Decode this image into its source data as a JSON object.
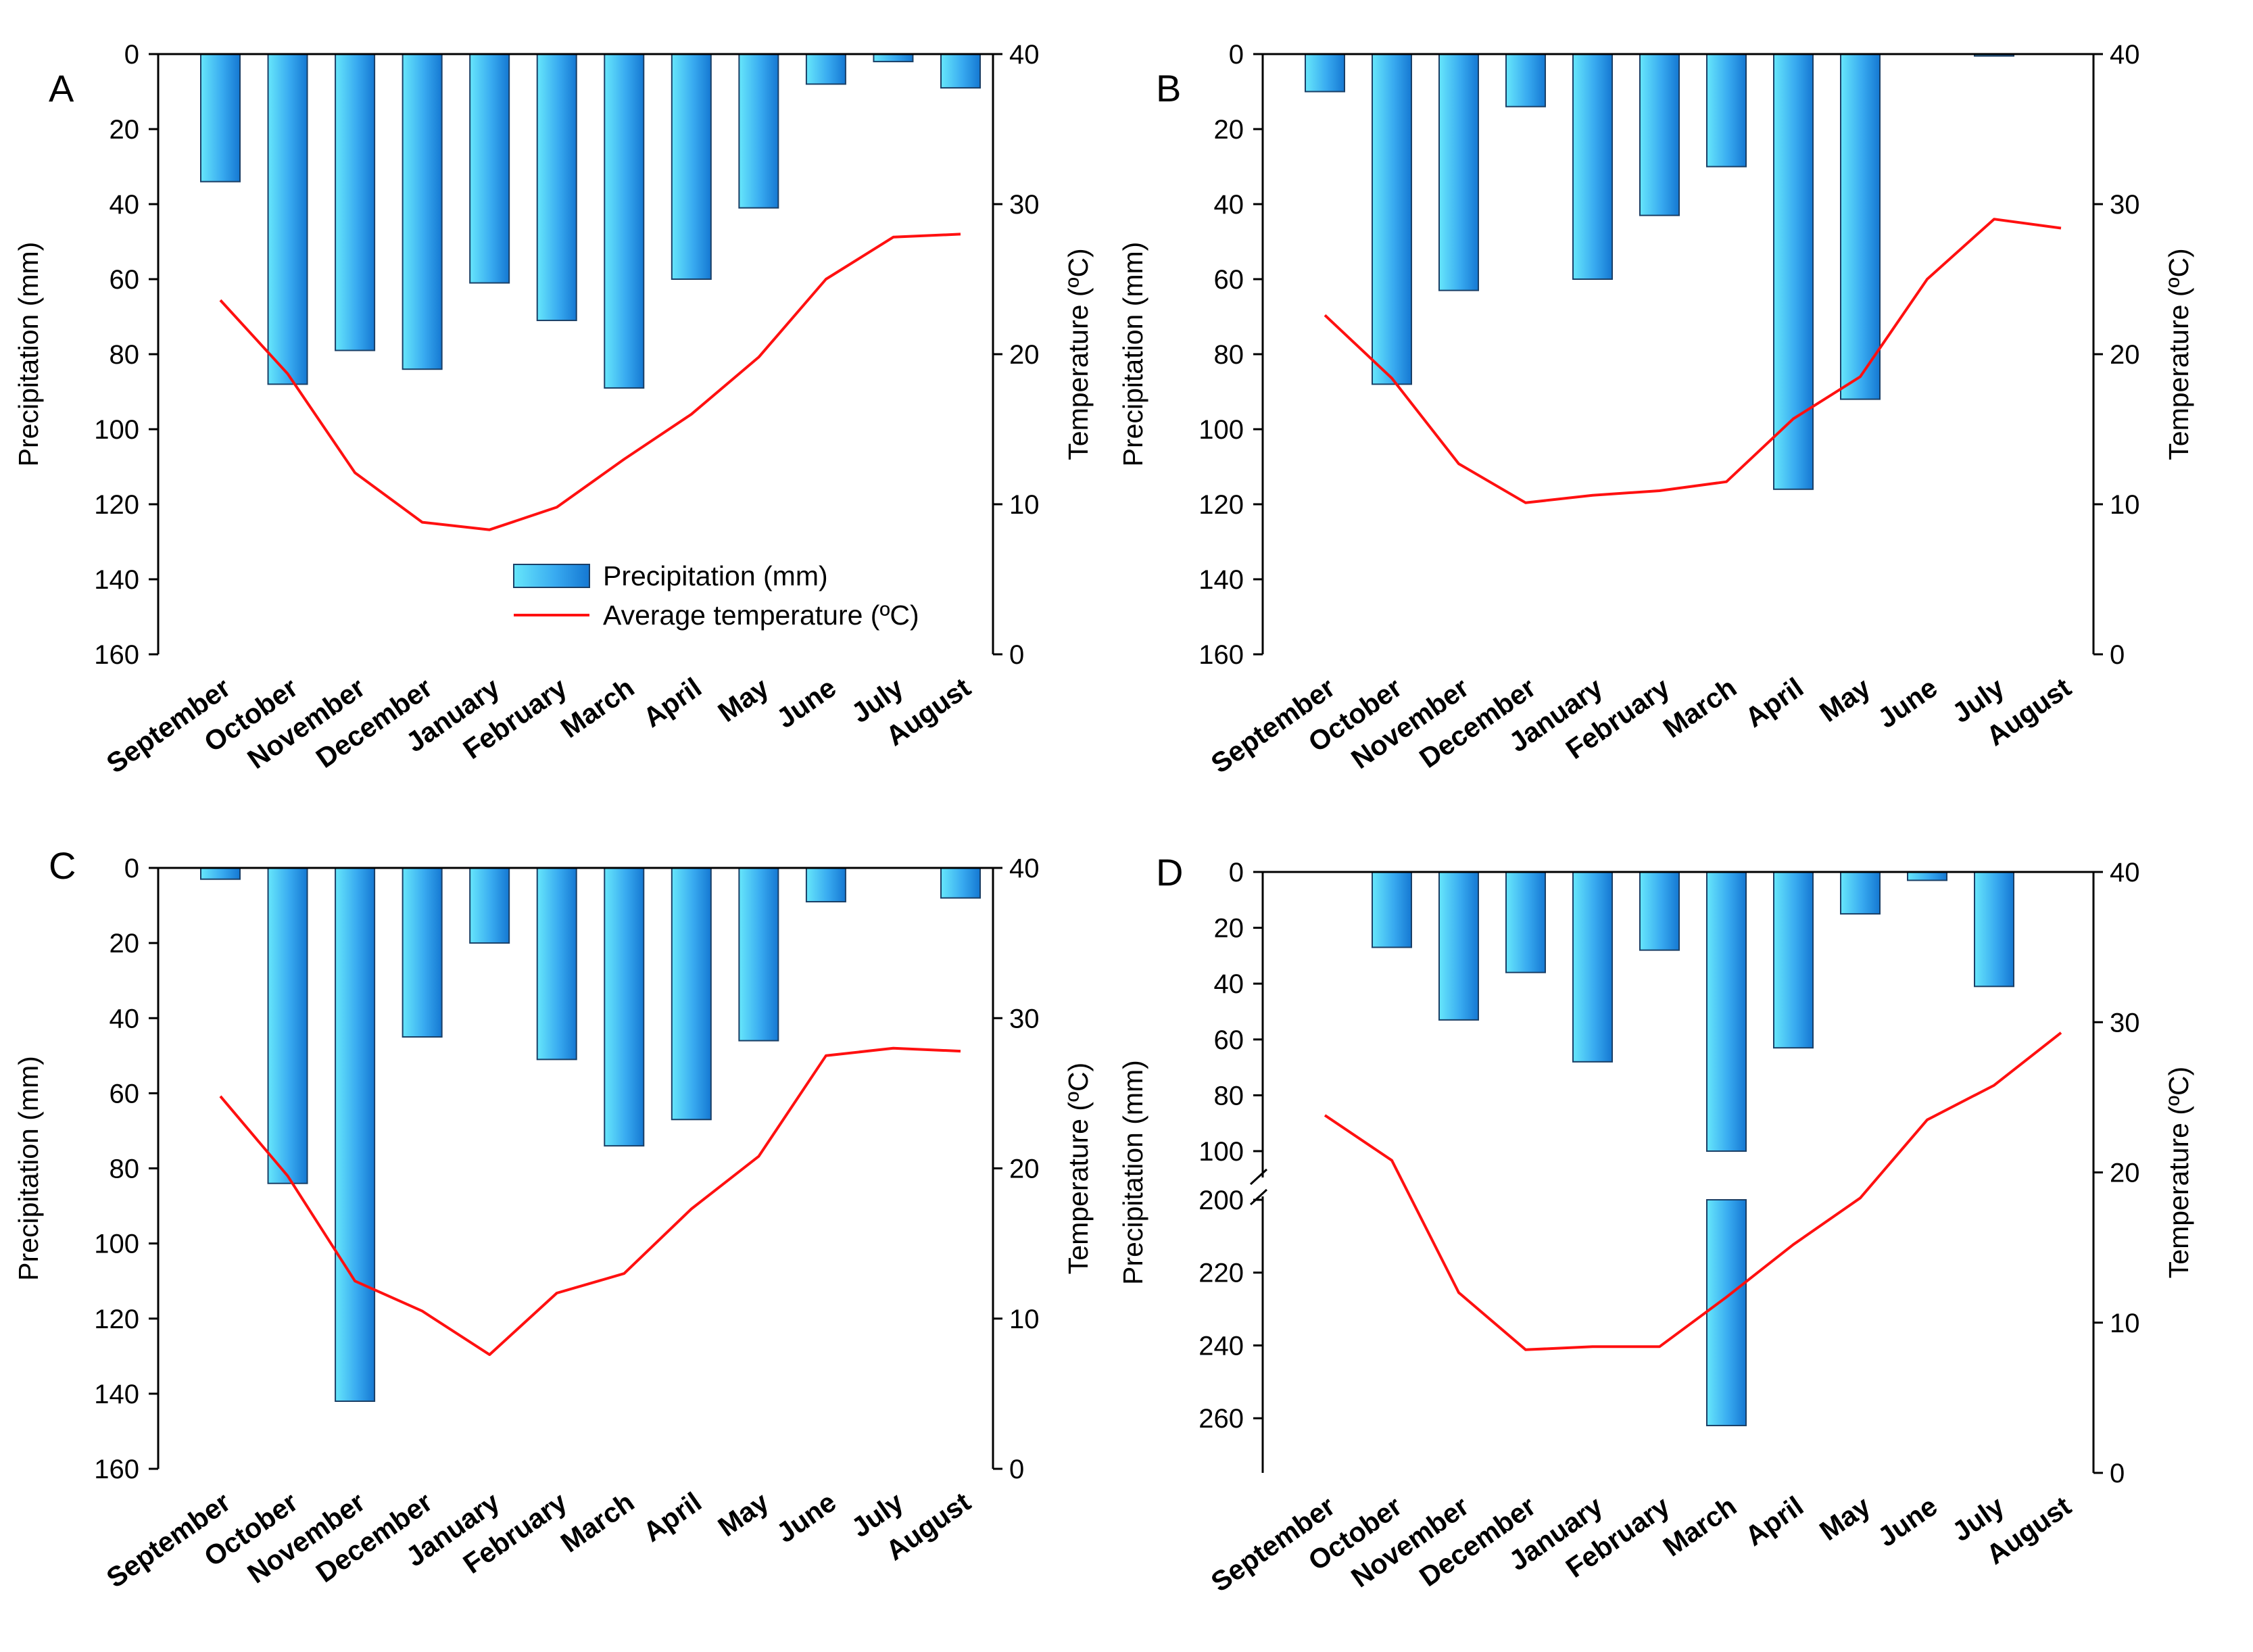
{
  "chart_data": [
    {
      "type": "bar",
      "panel": "A",
      "categories": [
        "September",
        "October",
        "November",
        "December",
        "January",
        "February",
        "March",
        "April",
        "May",
        "June",
        "July",
        "August"
      ],
      "series": [
        {
          "name": "Precipitation (mm)",
          "type": "bar",
          "axis": "left",
          "values": [
            34,
            88,
            79,
            84,
            61,
            71,
            89,
            60,
            41,
            8,
            2,
            9
          ]
        },
        {
          "name": "Average temperature (ºC)",
          "type": "line",
          "axis": "right",
          "values": [
            23.6,
            18.7,
            12.1,
            8.8,
            8.3,
            9.8,
            13.0,
            16.0,
            19.8,
            25.0,
            27.8,
            28.0
          ]
        }
      ],
      "ylabel": "Precipitation (mm)",
      "y2label": "Temperature (ºC)",
      "y_ticks": [
        0,
        20,
        40,
        60,
        80,
        100,
        120,
        140,
        160
      ],
      "y2_ticks": [
        40,
        30,
        20,
        10,
        0
      ],
      "ylim": [
        0,
        160
      ],
      "y2lim": [
        0,
        40
      ],
      "y_inverted": true,
      "legend": [
        "Precipitation (mm)",
        "Average temperature (ºC)"
      ]
    },
    {
      "type": "bar",
      "panel": "B",
      "categories": [
        "September",
        "October",
        "November",
        "December",
        "January",
        "February",
        "March",
        "April",
        "May",
        "June",
        "July",
        "August"
      ],
      "series": [
        {
          "name": "Precipitation (mm)",
          "type": "bar",
          "axis": "left",
          "values": [
            10,
            88,
            63,
            14,
            60,
            43,
            30,
            116,
            92,
            0,
            0.5,
            0
          ]
        },
        {
          "name": "Average temperature (ºC)",
          "type": "line",
          "axis": "right",
          "values": [
            22.6,
            18.4,
            12.7,
            10.1,
            10.6,
            10.9,
            11.5,
            15.7,
            18.5,
            25.0,
            29.0,
            28.4
          ]
        }
      ],
      "ylabel": "Precipitation (mm)",
      "y2label": "Temperature (ºC)",
      "y_ticks": [
        0,
        20,
        40,
        60,
        80,
        100,
        120,
        140,
        160
      ],
      "y2_ticks": [
        40,
        30,
        20,
        10,
        0
      ],
      "ylim": [
        0,
        160
      ],
      "y2lim": [
        0,
        40
      ],
      "y_inverted": true
    },
    {
      "type": "bar",
      "panel": "C",
      "categories": [
        "September",
        "October",
        "November",
        "December",
        "January",
        "February",
        "March",
        "April",
        "May",
        "June",
        "July",
        "August"
      ],
      "series": [
        {
          "name": "Precipitation (mm)",
          "type": "bar",
          "axis": "left",
          "values": [
            3,
            84,
            142,
            45,
            20,
            51,
            74,
            67,
            46,
            9,
            0,
            8
          ]
        },
        {
          "name": "Average temperature (ºC)",
          "type": "line",
          "axis": "right",
          "values": [
            24.8,
            19.5,
            12.5,
            10.5,
            7.6,
            11.7,
            13.0,
            17.3,
            20.8,
            27.5,
            28.0,
            27.8
          ]
        }
      ],
      "ylabel": "Precipitation (mm)",
      "y2label": "Temperature (ºC)",
      "y_ticks": [
        0,
        20,
        40,
        60,
        80,
        100,
        120,
        140,
        160
      ],
      "y2_ticks": [
        40,
        30,
        20,
        10,
        0
      ],
      "ylim": [
        0,
        160
      ],
      "y2lim": [
        0,
        40
      ],
      "y_inverted": true
    },
    {
      "type": "bar",
      "panel": "D",
      "categories": [
        "September",
        "October",
        "November",
        "December",
        "January",
        "February",
        "March",
        "April",
        "May",
        "June",
        "July",
        "August"
      ],
      "series": [
        {
          "name": "Precipitation (mm)",
          "type": "bar",
          "axis": "left",
          "values": [
            0,
            27,
            53,
            36,
            68,
            28,
            262,
            63,
            15,
            3,
            41,
            0
          ]
        },
        {
          "name": "Average temperature (ºC)",
          "type": "line",
          "axis": "right",
          "values": [
            23.8,
            20.8,
            12.0,
            8.2,
            8.4,
            8.4,
            11.7,
            15.2,
            18.3,
            23.5,
            25.8,
            29.3
          ]
        }
      ],
      "ylabel": "Precipitation (mm)",
      "y2label": "Temperature (ºC)",
      "y_ticks": [
        0,
        20,
        40,
        60,
        80,
        100,
        200,
        220,
        240,
        260
      ],
      "y2_ticks": [
        40,
        30,
        20,
        10,
        0
      ],
      "ylim": [
        0,
        275
      ],
      "y_break": [
        100,
        200
      ],
      "y2lim": [
        0,
        40
      ],
      "y_inverted": true
    }
  ],
  "colors": {
    "bar_light": "#5fe0f8",
    "bar_dark": "#1a86d8",
    "bar_edge": "#1a3f66",
    "line": "#ff1010",
    "axis": "#000000"
  }
}
